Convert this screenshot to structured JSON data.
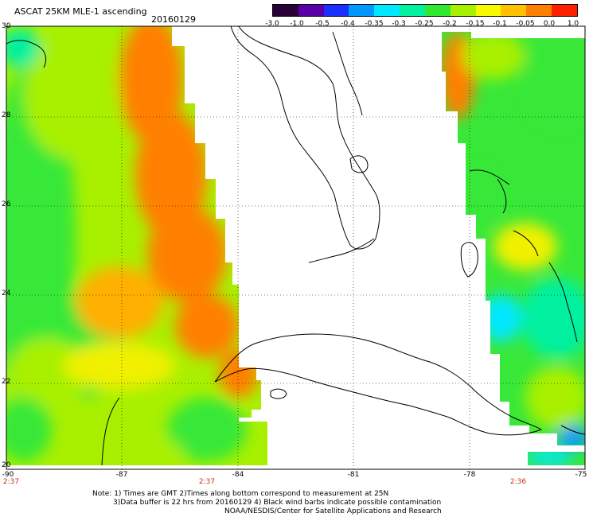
{
  "header": {
    "title": "ASCAT 25KM MLE-1 ascending",
    "date": "20160129"
  },
  "colorbar": {
    "labels": [
      "-3.0",
      "-1.0",
      "-0.5",
      "-0.4",
      "-0.35",
      "-0.3",
      "-0.25",
      "-0.2",
      "-0.15",
      "-0.1",
      "-0.05",
      "0.0",
      "1.0"
    ],
    "colors": [
      "#2a0038",
      "#5a00a8",
      "#1a30ff",
      "#0098ff",
      "#00e8ff",
      "#00f0a0",
      "#30e830",
      "#a8f000",
      "#f8f800",
      "#ffc000",
      "#ff8000",
      "#ff2000"
    ]
  },
  "map": {
    "lat_labels": [
      "30",
      "28",
      "26",
      "24",
      "22",
      "20"
    ],
    "lon_labels": [
      "-90",
      "-87",
      "-84",
      "-81",
      "-78",
      "-75"
    ],
    "pass_times": [
      "2:37",
      "2:37",
      "2:36"
    ],
    "colors": {
      "orange": "#ff8000",
      "amber": "#ffb000",
      "yellow": "#f0f000",
      "yellow_green": "#a8f000",
      "green": "#38e838",
      "teal": "#00f0a0",
      "cyan": "#00e8ff",
      "blue": "#0098ff"
    }
  },
  "notes": {
    "line1": "Note: 1) Times are GMT 2)Times along bottom correspond to measurement at 25N",
    "line2": "3)Data buffer is 22 hrs from 20160129 4) Black wind barbs indicate possible contamination",
    "line3": "NOAA/NESDIS/Center for Satellite Applications and Research"
  }
}
